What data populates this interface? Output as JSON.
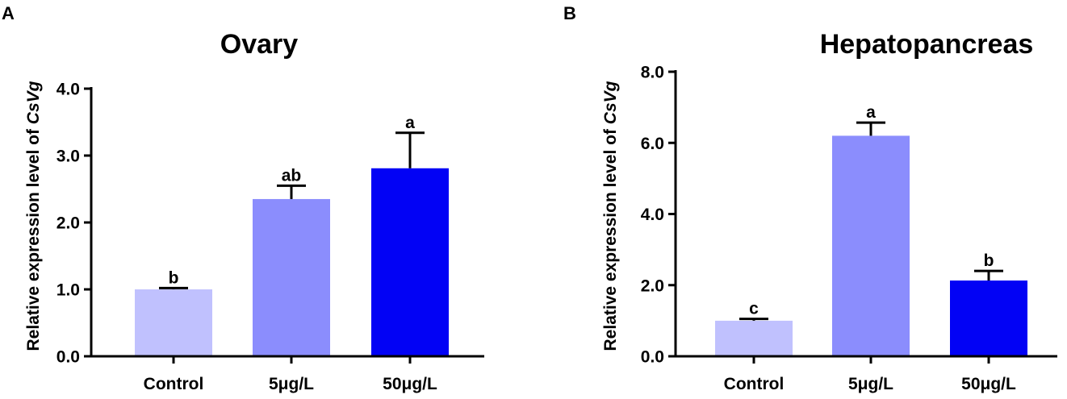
{
  "chart_data": [
    {
      "panel": "A",
      "type": "bar",
      "title": "Ovary",
      "ylabel": "Relative expression level of ",
      "ylabel_italic": "CsVg",
      "xlabel": "",
      "ylim": [
        0,
        4
      ],
      "ytick_values": [
        0,
        1,
        2,
        3,
        4
      ],
      "ytick_labels": [
        "0.0",
        "1.0",
        "2.0",
        "3.0",
        "4.0"
      ],
      "categories": [
        "Control",
        "5μg/L",
        "50μg/L"
      ],
      "values": [
        1.0,
        2.35,
        2.81
      ],
      "errors": [
        0.02,
        0.2,
        0.53
      ],
      "significance": [
        "b",
        "ab",
        "a"
      ],
      "colors": [
        "#c0c1fe",
        "#8b8dfd",
        "#0202f5"
      ],
      "grid": false
    },
    {
      "panel": "B",
      "type": "bar",
      "title": "Hepatopancreas",
      "ylabel": "Relative expression level of ",
      "ylabel_italic": "CsVg",
      "xlabel": "",
      "ylim": [
        0,
        8
      ],
      "ytick_values": [
        0,
        2,
        4,
        6,
        8
      ],
      "ytick_labels": [
        "0.0",
        "2.0",
        "4.0",
        "6.0",
        "8.0"
      ],
      "categories": [
        "Control",
        "5μg/L",
        "50μg/L"
      ],
      "values": [
        1.0,
        6.2,
        2.13
      ],
      "errors": [
        0.05,
        0.37,
        0.27
      ],
      "significance": [
        "c",
        "a",
        "b"
      ],
      "colors": [
        "#c0c1fe",
        "#8b8dfd",
        "#0202f5"
      ],
      "grid": false
    }
  ]
}
